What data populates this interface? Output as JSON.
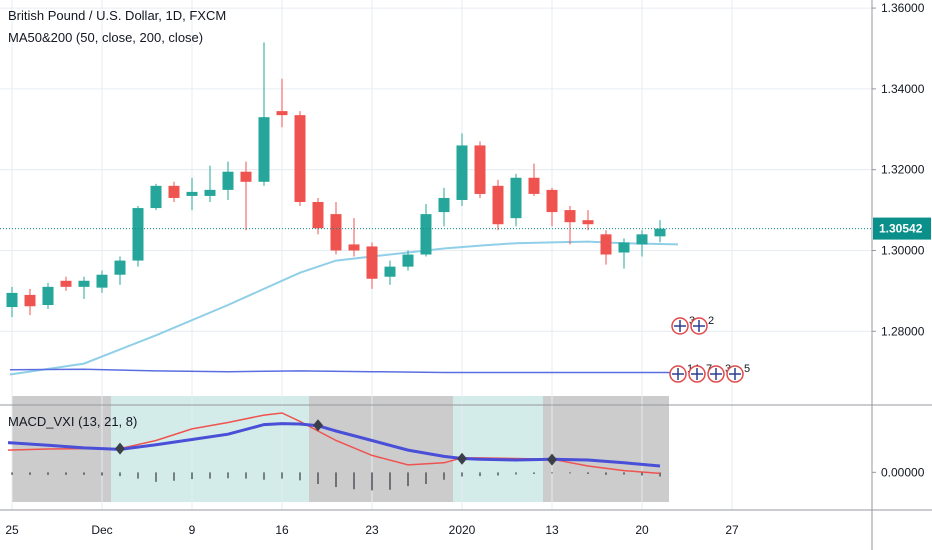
{
  "header": {
    "title": "British Pound / U.S. Dollar, 1D, FXCM",
    "indicator": "MA50&200 (50, close, 200, close)",
    "macd_label": "MACD_VXI (13, 21, 8)"
  },
  "colors": {
    "up": "#26a69a",
    "down": "#ef5350",
    "ma50": "#90cfe8",
    "ma200": "#5b6ee1",
    "last_price_bg": "#0b8f8a",
    "macd_fast": "#4a4fd8",
    "macd_slow": "#ef5350",
    "zone_gray": "#cccccc",
    "zone_teal": "#d3ece9"
  },
  "chart_data": [
    {
      "type": "candlestick",
      "symbol": "British Pound / U.S. Dollar",
      "interval": "1D",
      "source": "FXCM",
      "ylim": [
        1.262,
        1.362
      ],
      "y_ticks": [
        "1.36000",
        "1.34000",
        "1.32000",
        "1.30000",
        "1.28000"
      ],
      "x_ticks": [
        "25",
        "Dec",
        "9",
        "16",
        "23",
        "2020",
        "13",
        "20",
        "27"
      ],
      "last_price": 1.30542,
      "last_price_label": "1.30542",
      "candles": [
        {
          "i": 0,
          "o": 1.286,
          "h": 1.291,
          "l": 1.2835,
          "c": 1.2895
        },
        {
          "i": 1,
          "o": 1.289,
          "h": 1.2905,
          "l": 1.284,
          "c": 1.2862
        },
        {
          "i": 2,
          "o": 1.2865,
          "h": 1.292,
          "l": 1.2855,
          "c": 1.291
        },
        {
          "i": 3,
          "o": 1.2925,
          "h": 1.2935,
          "l": 1.29,
          "c": 1.291
        },
        {
          "i": 4,
          "o": 1.291,
          "h": 1.2935,
          "l": 1.288,
          "c": 1.2925
        },
        {
          "i": 5,
          "o": 1.2908,
          "h": 1.295,
          "l": 1.2895,
          "c": 1.294
        },
        {
          "i": 6,
          "o": 1.294,
          "h": 1.2985,
          "l": 1.2915,
          "c": 1.2975
        },
        {
          "i": 7,
          "o": 1.2975,
          "h": 1.311,
          "l": 1.296,
          "c": 1.3105
        },
        {
          "i": 8,
          "o": 1.3105,
          "h": 1.3165,
          "l": 1.31,
          "c": 1.316
        },
        {
          "i": 9,
          "o": 1.316,
          "h": 1.317,
          "l": 1.312,
          "c": 1.313
        },
        {
          "i": 10,
          "o": 1.3135,
          "h": 1.318,
          "l": 1.31,
          "c": 1.3145
        },
        {
          "i": 11,
          "o": 1.3135,
          "h": 1.321,
          "l": 1.312,
          "c": 1.315
        },
        {
          "i": 12,
          "o": 1.315,
          "h": 1.322,
          "l": 1.3125,
          "c": 1.3195
        },
        {
          "i": 13,
          "o": 1.3195,
          "h": 1.322,
          "l": 1.305,
          "c": 1.317
        },
        {
          "i": 14,
          "o": 1.317,
          "h": 1.3515,
          "l": 1.316,
          "c": 1.333
        },
        {
          "i": 15,
          "o": 1.3345,
          "h": 1.3425,
          "l": 1.3305,
          "c": 1.3335
        },
        {
          "i": 16,
          "o": 1.3335,
          "h": 1.3345,
          "l": 1.311,
          "c": 1.312
        },
        {
          "i": 17,
          "o": 1.312,
          "h": 1.313,
          "l": 1.304,
          "c": 1.3055
        },
        {
          "i": 18,
          "o": 1.309,
          "h": 1.312,
          "l": 1.299,
          "c": 1.3
        },
        {
          "i": 19,
          "o": 1.3015,
          "h": 1.308,
          "l": 1.2985,
          "c": 1.3
        },
        {
          "i": 20,
          "o": 1.301,
          "h": 1.302,
          "l": 1.2905,
          "c": 1.293
        },
        {
          "i": 21,
          "o": 1.2935,
          "h": 1.2975,
          "l": 1.2915,
          "c": 1.296
        },
        {
          "i": 22,
          "o": 1.296,
          "h": 1.3,
          "l": 1.295,
          "c": 1.299
        },
        {
          "i": 23,
          "o": 1.299,
          "h": 1.3115,
          "l": 1.2985,
          "c": 1.309
        },
        {
          "i": 24,
          "o": 1.3095,
          "h": 1.3155,
          "l": 1.306,
          "c": 1.313
        },
        {
          "i": 25,
          "o": 1.3125,
          "h": 1.329,
          "l": 1.311,
          "c": 1.326
        },
        {
          "i": 26,
          "o": 1.326,
          "h": 1.327,
          "l": 1.313,
          "c": 1.314
        },
        {
          "i": 27,
          "o": 1.316,
          "h": 1.3175,
          "l": 1.305,
          "c": 1.3065
        },
        {
          "i": 28,
          "o": 1.308,
          "h": 1.319,
          "l": 1.306,
          "c": 1.318
        },
        {
          "i": 29,
          "o": 1.318,
          "h": 1.3215,
          "l": 1.3135,
          "c": 1.314
        },
        {
          "i": 30,
          "o": 1.315,
          "h": 1.3155,
          "l": 1.306,
          "c": 1.3095
        },
        {
          "i": 31,
          "o": 1.31,
          "h": 1.311,
          "l": 1.3015,
          "c": 1.307
        },
        {
          "i": 32,
          "o": 1.3075,
          "h": 1.31,
          "l": 1.305,
          "c": 1.3065
        },
        {
          "i": 33,
          "o": 1.304,
          "h": 1.305,
          "l": 1.2965,
          "c": 1.299
        },
        {
          "i": 34,
          "o": 1.2995,
          "h": 1.303,
          "l": 1.2955,
          "c": 1.302
        },
        {
          "i": 35,
          "o": 1.3015,
          "h": 1.305,
          "l": 1.2985,
          "c": 1.304
        },
        {
          "i": 36,
          "o": 1.3035,
          "h": 1.3075,
          "l": 1.302,
          "c": 1.3054
        }
      ],
      "series": [
        {
          "name": "MA50",
          "x": [
            0,
            4,
            8,
            12,
            16,
            18,
            20,
            22,
            24,
            26,
            28,
            30,
            32,
            34,
            36
          ],
          "y": [
            1.2693,
            1.272,
            1.279,
            1.2865,
            1.2945,
            1.2975,
            1.2985,
            1.2995,
            1.3005,
            1.3012,
            1.3018,
            1.302,
            1.3022,
            1.3018,
            1.3015
          ]
        },
        {
          "name": "MA200",
          "x": [
            0,
            4,
            8,
            12,
            16,
            20,
            24,
            28,
            32,
            36
          ],
          "y": [
            1.2705,
            1.2706,
            1.2702,
            1.27,
            1.2702,
            1.27,
            1.2698,
            1.2698,
            1.2698,
            1.2698
          ]
        }
      ],
      "events": {
        "row1": [
          "3",
          "2"
        ],
        "row2": [
          "14",
          "7",
          "3",
          "5"
        ]
      }
    },
    {
      "type": "line",
      "name": "MACD_VXI (13, 21, 8)",
      "ylim": [
        -0.014,
        0.036
      ],
      "y_ticks": [
        "0.00000"
      ],
      "zones": [
        {
          "from": 0,
          "to": 5.5,
          "color": "gray"
        },
        {
          "from": 5.5,
          "to": 16.5,
          "color": "teal"
        },
        {
          "from": 16.5,
          "to": 24.5,
          "color": "gray"
        },
        {
          "from": 24.5,
          "to": 29.5,
          "color": "teal"
        },
        {
          "from": 29.5,
          "to": 36.5,
          "color": "gray"
        }
      ],
      "series": [
        {
          "name": "fast",
          "x": [
            0,
            2,
            4,
            6,
            8,
            10,
            12,
            14,
            15,
            16,
            17,
            18,
            20,
            22,
            24,
            25,
            26,
            28,
            30,
            32,
            34,
            36
          ],
          "y": [
            0.014,
            0.0128,
            0.0115,
            0.0108,
            0.013,
            0.0155,
            0.018,
            0.0225,
            0.023,
            0.0228,
            0.022,
            0.0195,
            0.015,
            0.0105,
            0.0075,
            0.0065,
            0.0062,
            0.0058,
            0.0062,
            0.0058,
            0.0045,
            0.003
          ]
        },
        {
          "name": "slow",
          "x": [
            0,
            2,
            4,
            6,
            8,
            10,
            12,
            14,
            15,
            16,
            17,
            18,
            20,
            22,
            24,
            25,
            26,
            28,
            30,
            32,
            34,
            36
          ],
          "y": [
            0.0105,
            0.011,
            0.0112,
            0.0112,
            0.015,
            0.0205,
            0.0235,
            0.027,
            0.028,
            0.024,
            0.0195,
            0.015,
            0.008,
            0.0035,
            0.0045,
            0.0068,
            0.0068,
            0.0065,
            0.0062,
            0.003,
            0.0008,
            -0.0005
          ]
        },
        {
          "name": "histogram",
          "type": "bar",
          "x": [
            0,
            1,
            2,
            3,
            4,
            5,
            6,
            7,
            8,
            9,
            10,
            11,
            12,
            13,
            14,
            15,
            16,
            17,
            18,
            19,
            20,
            21,
            22,
            23,
            24,
            25,
            26,
            27,
            28,
            29,
            30,
            31,
            32,
            33,
            34,
            35,
            36
          ],
          "y": [
            -0.0012,
            -0.0012,
            -0.0012,
            -0.0012,
            -0.0012,
            -0.0015,
            -0.0018,
            -0.003,
            -0.0045,
            -0.004,
            -0.0032,
            -0.003,
            -0.0028,
            -0.003,
            -0.0035,
            -0.003,
            -0.0038,
            -0.0055,
            -0.007,
            -0.008,
            -0.0085,
            -0.0082,
            -0.0065,
            -0.0055,
            -0.0035,
            -0.002,
            -0.0018,
            -0.0015,
            -0.001,
            -0.0008,
            -0.0005,
            -0.0005,
            -0.0008,
            -0.0012,
            -0.001,
            -0.0015,
            -0.002
          ]
        },
        {
          "name": "cross",
          "type": "marker",
          "x": [
            6,
            17,
            25,
            30
          ],
          "y": [
            0.0112,
            0.0222,
            0.0064,
            0.006
          ]
        }
      ]
    }
  ]
}
